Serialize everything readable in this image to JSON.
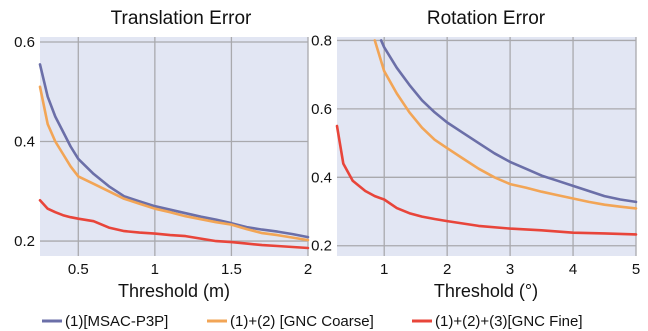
{
  "chart_data": [
    {
      "type": "line",
      "title": "Translation Error",
      "xlabel": "Threshold (m)",
      "ylabel": "",
      "xlim": [
        0.25,
        2.0
      ],
      "ylim": [
        0.17,
        0.61
      ],
      "xticks": [
        0.5,
        1,
        1.5,
        2
      ],
      "xtick_labels": [
        "0.5",
        "1",
        "1.5",
        "2"
      ],
      "yticks": [
        0.2,
        0.4,
        0.6
      ],
      "ytick_labels": [
        "0.2",
        "0.4",
        "0.6"
      ],
      "grid": true,
      "series": [
        {
          "name": "(1)[MSAC-P3P]",
          "color": "#6b6fa8",
          "x": [
            0.25,
            0.3,
            0.35,
            0.4,
            0.45,
            0.5,
            0.6,
            0.7,
            0.8,
            0.9,
            1.0,
            1.1,
            1.2,
            1.3,
            1.4,
            1.5,
            1.6,
            1.7,
            1.8,
            1.9,
            2.0
          ],
          "y": [
            0.555,
            0.49,
            0.45,
            0.42,
            0.39,
            0.365,
            0.335,
            0.31,
            0.29,
            0.28,
            0.27,
            0.263,
            0.256,
            0.249,
            0.243,
            0.236,
            0.228,
            0.223,
            0.219,
            0.214,
            0.208
          ]
        },
        {
          "name": "(1)+(2) [GNC Coarse]",
          "color": "#f2a556",
          "x": [
            0.25,
            0.3,
            0.35,
            0.4,
            0.45,
            0.5,
            0.6,
            0.7,
            0.8,
            0.9,
            1.0,
            1.1,
            1.2,
            1.3,
            1.4,
            1.5,
            1.6,
            1.7,
            1.8,
            1.9,
            2.0
          ],
          "y": [
            0.51,
            0.435,
            0.4,
            0.375,
            0.35,
            0.33,
            0.315,
            0.3,
            0.285,
            0.275,
            0.265,
            0.258,
            0.25,
            0.244,
            0.238,
            0.233,
            0.224,
            0.216,
            0.212,
            0.207,
            0.202
          ]
        },
        {
          "name": "(1)+(2)+(3)[GNC Fine]",
          "color": "#e8453a",
          "x": [
            0.25,
            0.3,
            0.35,
            0.4,
            0.45,
            0.5,
            0.6,
            0.7,
            0.8,
            0.9,
            1.0,
            1.1,
            1.2,
            1.3,
            1.4,
            1.5,
            1.6,
            1.7,
            1.8,
            1.9,
            2.0
          ],
          "y": [
            0.282,
            0.265,
            0.258,
            0.252,
            0.248,
            0.245,
            0.24,
            0.227,
            0.22,
            0.217,
            0.215,
            0.212,
            0.21,
            0.205,
            0.2,
            0.198,
            0.195,
            0.192,
            0.19,
            0.188,
            0.186
          ]
        }
      ]
    },
    {
      "type": "line",
      "title": "Rotation Error",
      "xlabel": "Threshold (°)",
      "ylabel": "",
      "xlim": [
        0.25,
        5.0
      ],
      "ylim": [
        0.17,
        0.81
      ],
      "xticks": [
        1,
        2,
        3,
        4,
        5
      ],
      "xtick_labels": [
        "1",
        "2",
        "3",
        "4",
        "5"
      ],
      "yticks": [
        0.2,
        0.4,
        0.6,
        0.8
      ],
      "ytick_labels": [
        "0.2",
        "0.4",
        "0.6",
        "0.8"
      ],
      "grid": true,
      "series": [
        {
          "name": "(1)[MSAC-P3P]",
          "color": "#6b6fa8",
          "x": [
            0.95,
            1.0,
            1.2,
            1.4,
            1.6,
            1.8,
            2.0,
            2.25,
            2.5,
            2.75,
            3.0,
            3.25,
            3.5,
            3.75,
            4.0,
            4.25,
            4.5,
            4.75,
            5.0
          ],
          "y": [
            0.8,
            0.78,
            0.72,
            0.67,
            0.625,
            0.59,
            0.56,
            0.53,
            0.5,
            0.47,
            0.445,
            0.425,
            0.405,
            0.39,
            0.375,
            0.36,
            0.345,
            0.335,
            0.328
          ]
        },
        {
          "name": "(1)+(2) [GNC Coarse]",
          "color": "#f2a556",
          "x": [
            0.85,
            1.0,
            1.2,
            1.4,
            1.6,
            1.8,
            2.0,
            2.25,
            2.5,
            2.75,
            3.0,
            3.25,
            3.5,
            3.75,
            4.0,
            4.25,
            4.5,
            4.75,
            5.0
          ],
          "y": [
            0.8,
            0.71,
            0.645,
            0.59,
            0.545,
            0.51,
            0.485,
            0.455,
            0.425,
            0.4,
            0.38,
            0.37,
            0.358,
            0.348,
            0.338,
            0.328,
            0.32,
            0.314,
            0.309
          ]
        },
        {
          "name": "(1)+(2)+(3)[GNC Fine]",
          "color": "#e8453a",
          "x": [
            0.25,
            0.35,
            0.5,
            0.7,
            0.85,
            1.0,
            1.2,
            1.4,
            1.6,
            1.8,
            2.0,
            2.25,
            2.5,
            3.0,
            3.5,
            4.0,
            4.5,
            5.0
          ],
          "y": [
            0.55,
            0.44,
            0.39,
            0.36,
            0.345,
            0.335,
            0.31,
            0.295,
            0.285,
            0.278,
            0.272,
            0.265,
            0.258,
            0.25,
            0.245,
            0.238,
            0.236,
            0.233
          ]
        }
      ]
    }
  ],
  "legend": {
    "placement": "bottom",
    "items": [
      {
        "label": "(1)[MSAC-P3P]",
        "color": "#6b6fa8"
      },
      {
        "label": "(1)+(2) [GNC Coarse]",
        "color": "#f2a556"
      },
      {
        "label": "(1)+(2)+(3)[GNC Fine]",
        "color": "#e8453a"
      }
    ]
  },
  "colors": {
    "plot_background": "#e2e6f3",
    "grid": "#a9a9ad"
  }
}
